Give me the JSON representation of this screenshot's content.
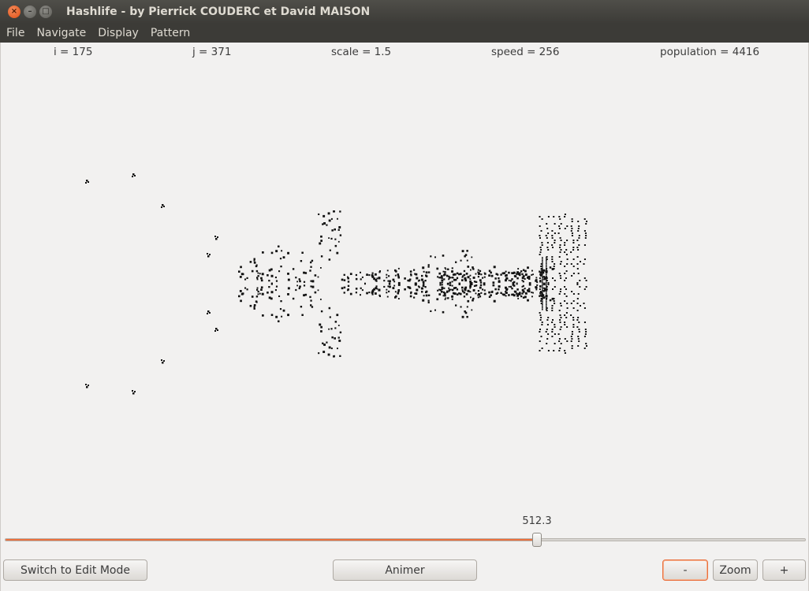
{
  "window": {
    "title": "Hashlife - by Pierrick COUDERC et David MAISON",
    "close_glyph": "×",
    "min_glyph": "–",
    "max_glyph": "□"
  },
  "menu": {
    "items": [
      "File",
      "Navigate",
      "Display",
      "Pattern"
    ]
  },
  "stats": {
    "i": "i = 175",
    "j": "j = 371",
    "scale": "scale = 1.5",
    "speed": "speed = 256",
    "population": "population = 4416"
  },
  "slider": {
    "value_label": "512.3",
    "fraction": 0.664,
    "accent": "#e9703e"
  },
  "buttons": {
    "edit_mode": "Switch to Edit Mode",
    "animate": "Animer",
    "zoom_out": "-",
    "zoom": "Zoom",
    "zoom_in": "+"
  },
  "colors": {
    "cell": "#111111",
    "background": "#f2f1f0",
    "titlebar": "#3c3b37"
  }
}
